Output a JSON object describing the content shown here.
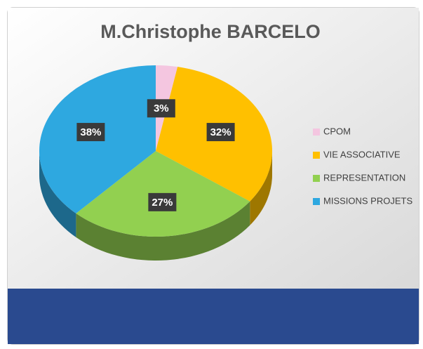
{
  "chart_data": {
    "type": "pie",
    "title": "M.Christophe BARCELO",
    "categories": [
      "CPOM",
      "VIE ASSOCIATIVE",
      "REPRESENTATION",
      "MISSIONS PROJETS"
    ],
    "values": [
      3,
      32,
      27,
      38
    ],
    "value_labels": [
      "3%",
      "32%",
      "27%",
      "38%"
    ],
    "colors": [
      "#f4c6e0",
      "#ffc000",
      "#92d050",
      "#2ea8e0"
    ],
    "legend": "right"
  }
}
